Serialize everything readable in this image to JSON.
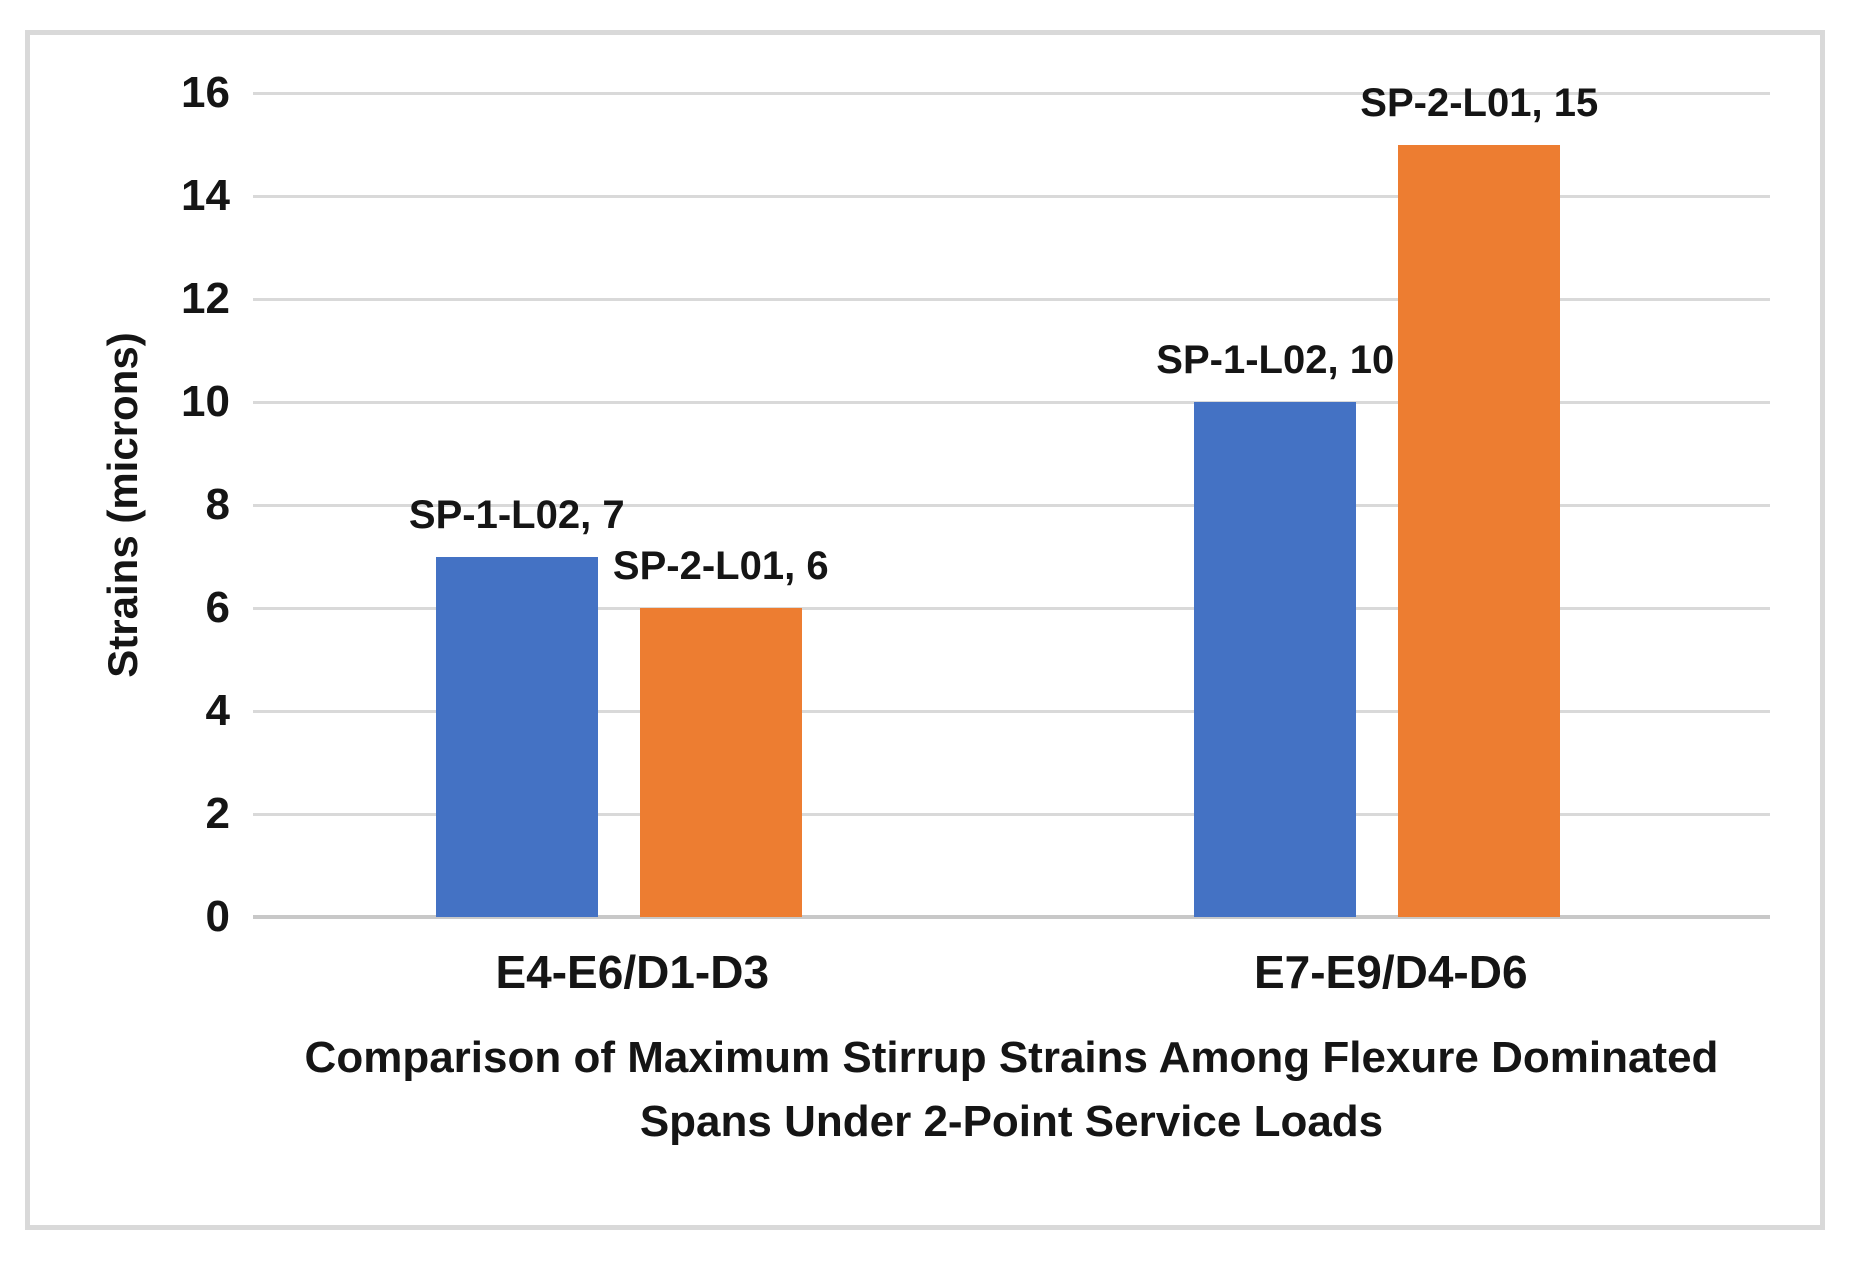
{
  "chart_data": {
    "type": "bar",
    "title": "Comparison of Maximum Stirrup Strains Among Flexure Dominated Spans Under 2-Point Service Loads",
    "title_lines": [
      "Comparison of Maximum Stirrup Strains Among Flexure Dominated",
      "Spans Under 2-Point Service Loads"
    ],
    "xlabel": "",
    "ylabel": "Strains (microns)",
    "ylim": [
      0,
      16
    ],
    "ytick_step": 2,
    "yticks": [
      0,
      2,
      4,
      6,
      8,
      10,
      12,
      14,
      16
    ],
    "grid": true,
    "legend_position": "none",
    "categories": [
      "E4-E6/D1-D3",
      "E7-E9/D4-D6"
    ],
    "series": [
      {
        "name": "SP-1-L02",
        "color": "#4472C4",
        "values": [
          7,
          10
        ]
      },
      {
        "name": "SP-2-L01",
        "color": "#ED7D31",
        "values": [
          6,
          15
        ]
      }
    ],
    "data_labels": [
      [
        "SP-1-L02, 7",
        "SP-1-L02, 10"
      ],
      [
        "SP-2-L01, 6",
        "SP-2-L01, 15"
      ]
    ],
    "colors": {
      "series_blue": "#4472C4",
      "series_orange": "#ED7D31",
      "gridline": "#D9D9D9",
      "axis_line": "#C8C8C8",
      "frame_border": "#D9D9D9",
      "text": "#151515",
      "background": "#FFFFFF"
    }
  }
}
